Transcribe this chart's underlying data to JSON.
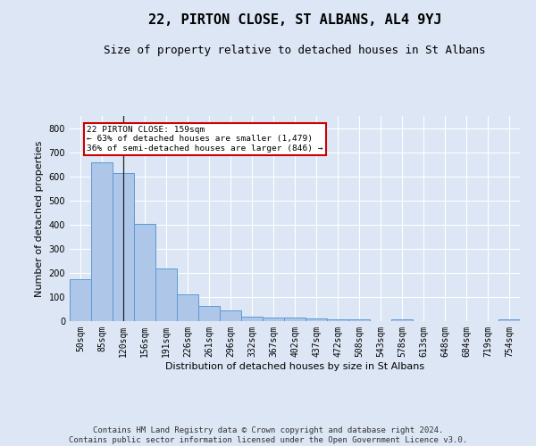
{
  "title": "22, PIRTON CLOSE, ST ALBANS, AL4 9YJ",
  "subtitle": "Size of property relative to detached houses in St Albans",
  "xlabel": "Distribution of detached houses by size in St Albans",
  "ylabel": "Number of detached properties",
  "footer_line1": "Contains HM Land Registry data © Crown copyright and database right 2024.",
  "footer_line2": "Contains public sector information licensed under the Open Government Licence v3.0.",
  "categories": [
    "50sqm",
    "85sqm",
    "120sqm",
    "156sqm",
    "191sqm",
    "226sqm",
    "261sqm",
    "296sqm",
    "332sqm",
    "367sqm",
    "402sqm",
    "437sqm",
    "472sqm",
    "508sqm",
    "543sqm",
    "578sqm",
    "613sqm",
    "648sqm",
    "684sqm",
    "719sqm",
    "754sqm"
  ],
  "values": [
    175,
    658,
    612,
    402,
    218,
    110,
    63,
    45,
    17,
    16,
    14,
    12,
    7,
    8,
    0,
    8,
    0,
    0,
    0,
    0,
    7
  ],
  "bar_color": "#aec6e8",
  "bar_edge_color": "#5b9bd5",
  "annotation_line1": "22 PIRTON CLOSE: 159sqm",
  "annotation_line2": "← 63% of detached houses are smaller (1,479)",
  "annotation_line3": "36% of semi-detached houses are larger (846) →",
  "annotation_box_color": "#ffffff",
  "annotation_box_edge_color": "#cc0000",
  "vline_x_index": 2,
  "ylim": [
    0,
    850
  ],
  "yticks": [
    0,
    100,
    200,
    300,
    400,
    500,
    600,
    700,
    800
  ],
  "background_color": "#dce6f5",
  "plot_bg_color": "#dce6f5",
  "grid_color": "#ffffff",
  "title_fontsize": 11,
  "subtitle_fontsize": 9,
  "axis_label_fontsize": 8,
  "tick_fontsize": 7,
  "footer_fontsize": 6.5
}
